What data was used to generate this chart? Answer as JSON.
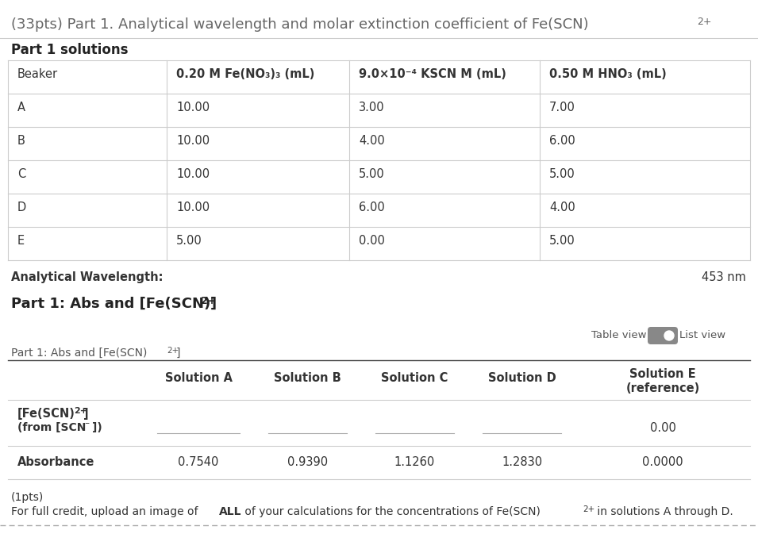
{
  "bg_color": "#ffffff",
  "title_text": "(33pts) Part 1. Analytical wavelength and molar extinction coefficient of Fe(SCN)",
  "title_sup": "2+",
  "title_color": "#666666",
  "title_fontsize": 13,
  "section1_header": "Part 1 solutions",
  "table1_col_headers": [
    "Beaker",
    "0.20 M Fe(NO₃)₃ (mL)",
    "9.0×10⁻⁴ KSCN M (mL)",
    "0.50 M HNO₃ (mL)"
  ],
  "table1_rows": [
    [
      "A",
      "10.00",
      "3.00",
      "7.00"
    ],
    [
      "B",
      "10.00",
      "4.00",
      "6.00"
    ],
    [
      "C",
      "10.00",
      "5.00",
      "5.00"
    ],
    [
      "D",
      "10.00",
      "6.00",
      "4.00"
    ],
    [
      "E",
      "5.00",
      "0.00",
      "5.00"
    ]
  ],
  "analytical_wavelength_label": "Analytical Wavelength:",
  "analytical_wavelength_value": "453 nm",
  "section2_header_text": "Part 1: Abs and [Fe(SCN)",
  "section2_header_sup": "2+",
  "section2_header_suffix": "]",
  "table_view_label": "Table view",
  "list_view_label": "List view",
  "part1_small_text": "Part 1: Abs and [Fe(SCN)",
  "part1_small_sup": "2+",
  "part1_small_suffix": "]",
  "t2_col_headers": [
    "",
    "Solution A",
    "Solution B",
    "Solution C",
    "Solution D",
    "Solution E\n(reference)"
  ],
  "t2_row1_label_line1": "[Fe(SCN)",
  "t2_row1_label_sup": "2+",
  "t2_row1_label_suffix": "]",
  "t2_row1_label_line2_a": "(from [SCN",
  "t2_row1_label_line2_sup": "⁻",
  "t2_row1_label_line2_b": "])",
  "t2_row1_vals": [
    "",
    "",
    "",
    "",
    "0.00"
  ],
  "t2_row2_label": "Absorbance",
  "t2_row2_vals": [
    "0.7540",
    "0.9390",
    "1.1260",
    "1.2830",
    "0.0000"
  ],
  "footnote1": "(1pts)",
  "fn2_pre": "For full credit, upload an image of ",
  "fn2_bold": "ALL",
  "fn2_mid": " of your calculations for the concentrations of Fe(SCN)",
  "fn2_sup": "2+",
  "fn2_end": " in solutions A through D.",
  "gray_line": "#cccccc",
  "dark_line": "#444444",
  "text_dark": "#333333",
  "text_mid": "#555555",
  "cell_fs": 10.5,
  "toggle_color": "#888888",
  "toggle_knob": "#ffffff"
}
